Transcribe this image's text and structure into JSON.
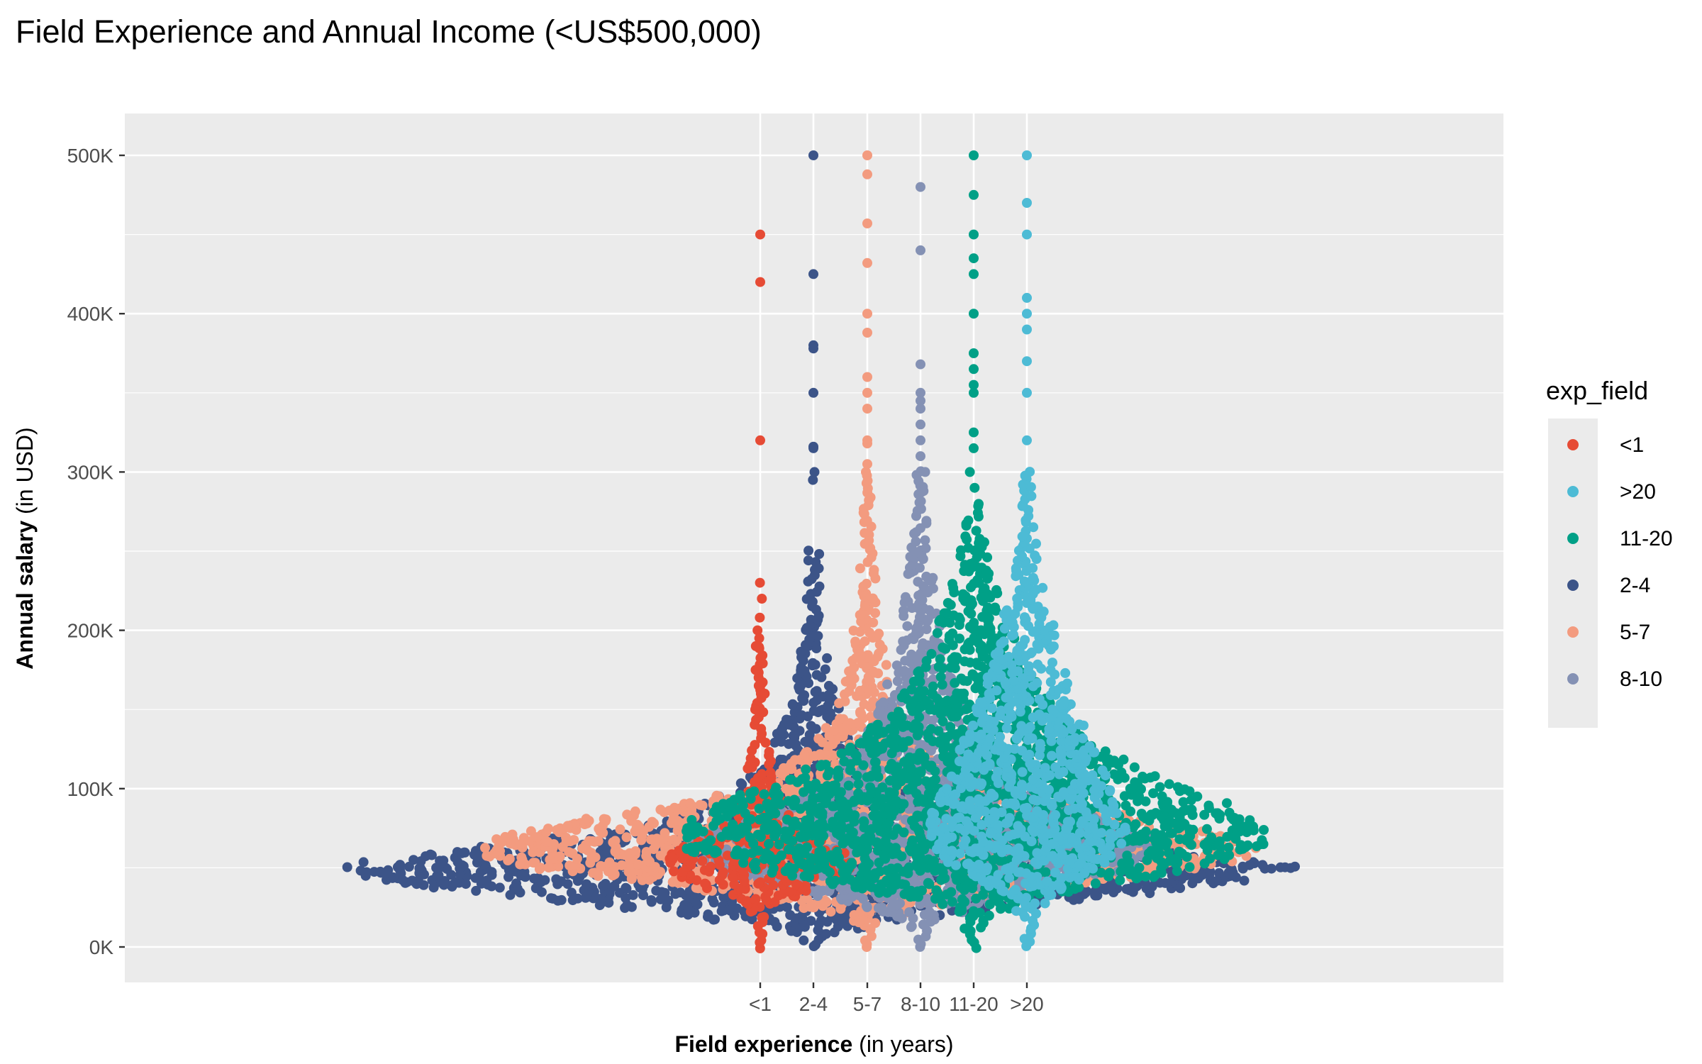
{
  "chart_data": {
    "type": "scatter",
    "title": "Field Experience and Annual Income (<US$500,000)",
    "xlabel_bold": "Field experience",
    "xlabel_rest": " (in years)",
    "ylabel_bold": "Annual salary",
    "ylabel_rest": " (in USD)",
    "x_categories": [
      "<1",
      "2-4",
      "5-7",
      "8-10",
      "11-20",
      ">20"
    ],
    "y_ticks": [
      {
        "value": 0,
        "label": "0K"
      },
      {
        "value": 100000,
        "label": "100K"
      },
      {
        "value": 200000,
        "label": "200K"
      },
      {
        "value": 300000,
        "label": "300K"
      },
      {
        "value": 400000,
        "label": "400K"
      },
      {
        "value": 500000,
        "label": "500K"
      }
    ],
    "ylim": [
      -25000,
      525000
    ],
    "grid": true,
    "legend": {
      "title": "exp_field",
      "position": "right",
      "entries": [
        "<1",
        ">20",
        "11-20",
        "2-4",
        "5-7",
        "8-10"
      ]
    },
    "colors": {
      "<1": "#E64B35",
      ">20": "#4DBBD5",
      "11-20": "#00A087",
      "2-4": "#3C5488",
      "5-7": "#F39B7F",
      "8-10": "#8491B4"
    },
    "draw_order": [
      "2-4",
      "5-7",
      "8-10",
      "<1",
      "11-20",
      ">20"
    ],
    "series": [
      {
        "name": "<1",
        "outliers": [
          450000,
          420000,
          320000,
          230000,
          220000,
          208000,
          200000,
          195000,
          190000,
          175000,
          165000,
          160000,
          150000
        ],
        "profile": [
          [
            0,
            1
          ],
          [
            10000,
            4
          ],
          [
            20000,
            8
          ],
          [
            30000,
            40
          ],
          [
            40000,
            90
          ],
          [
            50000,
            140
          ],
          [
            60000,
            120
          ],
          [
            70000,
            80
          ],
          [
            80000,
            50
          ],
          [
            90000,
            35
          ],
          [
            100000,
            25
          ],
          [
            120000,
            14
          ],
          [
            140000,
            8
          ],
          [
            160000,
            5
          ],
          [
            190000,
            3
          ]
        ]
      },
      {
        "name": "2-4",
        "outliers": [
          500000,
          425000,
          380000,
          378000,
          350000,
          316000,
          315000,
          300000,
          295000
        ],
        "profile": [
          [
            0,
            2
          ],
          [
            10000,
            40
          ],
          [
            20000,
            180
          ],
          [
            30000,
            380
          ],
          [
            40000,
            590
          ],
          [
            50000,
            680
          ],
          [
            60000,
            520
          ],
          [
            70000,
            320
          ],
          [
            80000,
            220
          ],
          [
            90000,
            160
          ],
          [
            100000,
            110
          ],
          [
            120000,
            70
          ],
          [
            140000,
            45
          ],
          [
            160000,
            30
          ],
          [
            180000,
            22
          ],
          [
            200000,
            16
          ],
          [
            220000,
            10
          ],
          [
            250000,
            8
          ]
        ]
      },
      {
        "name": "5-7",
        "outliers": [
          500000,
          488000,
          457000,
          432000,
          400000,
          388000,
          360000,
          350000,
          340000,
          320000,
          318000,
          305000
        ],
        "profile": [
          [
            0,
            2
          ],
          [
            10000,
            10
          ],
          [
            20000,
            30
          ],
          [
            30000,
            150
          ],
          [
            40000,
            310
          ],
          [
            50000,
            470
          ],
          [
            60000,
            560
          ],
          [
            70000,
            520
          ],
          [
            80000,
            400
          ],
          [
            90000,
            260
          ],
          [
            100000,
            170
          ],
          [
            120000,
            95
          ],
          [
            140000,
            55
          ],
          [
            160000,
            38
          ],
          [
            180000,
            26
          ],
          [
            200000,
            20
          ],
          [
            220000,
            14
          ],
          [
            250000,
            9
          ],
          [
            280000,
            6
          ],
          [
            300000,
            4
          ]
        ]
      },
      {
        "name": "8-10",
        "outliers": [
          480000,
          440000,
          368000,
          350000,
          345000,
          340000,
          330000,
          320000,
          310000,
          300000,
          288000
        ],
        "profile": [
          [
            0,
            2
          ],
          [
            10000,
            12
          ],
          [
            20000,
            40
          ],
          [
            30000,
            120
          ],
          [
            40000,
            220
          ],
          [
            50000,
            300
          ],
          [
            60000,
            340
          ],
          [
            70000,
            320
          ],
          [
            80000,
            260
          ],
          [
            90000,
            200
          ],
          [
            100000,
            150
          ],
          [
            120000,
            100
          ],
          [
            140000,
            70
          ],
          [
            160000,
            50
          ],
          [
            180000,
            38
          ],
          [
            200000,
            30
          ],
          [
            220000,
            22
          ],
          [
            250000,
            14
          ],
          [
            280000,
            8
          ],
          [
            300000,
            6
          ]
        ]
      },
      {
        "name": "11-20",
        "outliers": [
          500000,
          475000,
          450000,
          435000,
          425000,
          400000,
          375000,
          365000,
          355000,
          350000,
          325000,
          315000,
          300000,
          290000
        ],
        "profile": [
          [
            0,
            4
          ],
          [
            10000,
            10
          ],
          [
            20000,
            25
          ],
          [
            30000,
            80
          ],
          [
            40000,
            200
          ],
          [
            50000,
            320
          ],
          [
            60000,
            400
          ],
          [
            70000,
            420
          ],
          [
            80000,
            400
          ],
          [
            90000,
            360
          ],
          [
            100000,
            300
          ],
          [
            110000,
            250
          ],
          [
            120000,
            200
          ],
          [
            130000,
            160
          ],
          [
            140000,
            140
          ],
          [
            150000,
            120
          ],
          [
            160000,
            100
          ],
          [
            180000,
            70
          ],
          [
            200000,
            55
          ],
          [
            220000,
            35
          ],
          [
            240000,
            25
          ],
          [
            260000,
            12
          ],
          [
            280000,
            8
          ]
        ]
      },
      {
        "name": ">20",
        "outliers": [
          500000,
          470000,
          450000,
          410000,
          400000,
          390000,
          370000,
          350000,
          320000
        ],
        "profile": [
          [
            0,
            4
          ],
          [
            10000,
            8
          ],
          [
            20000,
            14
          ],
          [
            30000,
            30
          ],
          [
            40000,
            70
          ],
          [
            50000,
            105
          ],
          [
            60000,
            130
          ],
          [
            70000,
            140
          ],
          [
            80000,
            140
          ],
          [
            90000,
            130
          ],
          [
            100000,
            118
          ],
          [
            120000,
            100
          ],
          [
            140000,
            80
          ],
          [
            160000,
            65
          ],
          [
            180000,
            50
          ],
          [
            200000,
            40
          ],
          [
            220000,
            28
          ],
          [
            240000,
            18
          ],
          [
            260000,
            12
          ],
          [
            280000,
            8
          ],
          [
            300000,
            5
          ]
        ]
      }
    ]
  }
}
